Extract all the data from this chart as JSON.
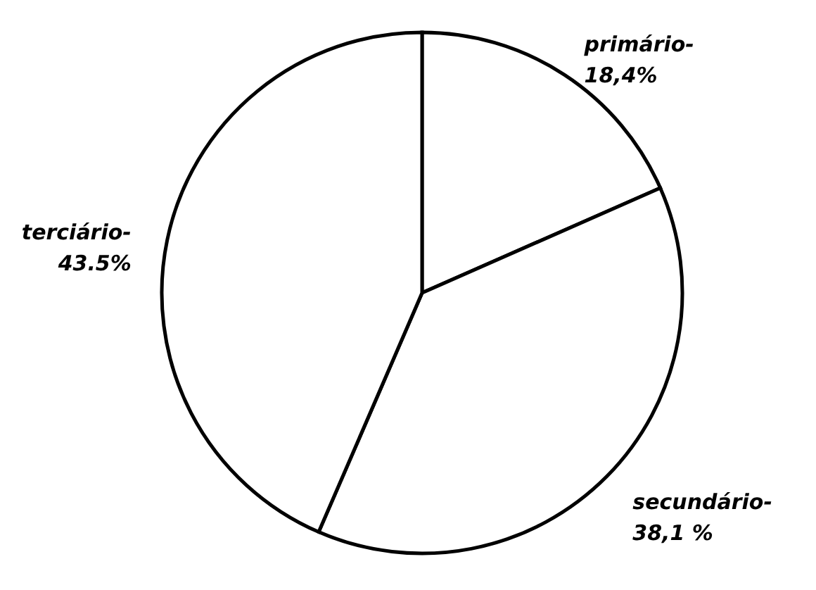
{
  "chart_data": {
    "type": "pie",
    "categories": [
      "primário-",
      "secundário-",
      "terciário-"
    ],
    "values": [
      18.4,
      38.1,
      43.5
    ],
    "value_labels": [
      "18,4%",
      "38,1 %",
      "43.5%"
    ],
    "colors": [
      "#ffffff",
      "#ffffff",
      "#ffffff"
    ]
  }
}
